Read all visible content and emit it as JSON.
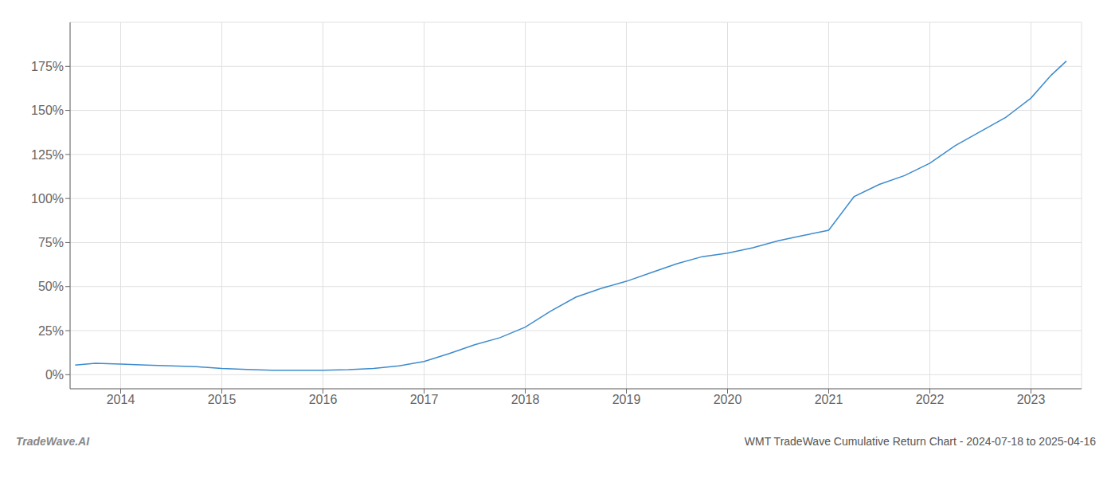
{
  "chart_data": {
    "type": "line",
    "title": "WMT TradeWave Cumulative Return Chart - 2024-07-18 to 2025-04-16",
    "annotations": [
      "TradeWave.AI"
    ],
    "x": [
      2013.55,
      2013.75,
      2014.0,
      2014.25,
      2014.5,
      2014.75,
      2015.0,
      2015.25,
      2015.5,
      2015.75,
      2016.0,
      2016.25,
      2016.5,
      2016.75,
      2017.0,
      2017.25,
      2017.5,
      2017.75,
      2018.0,
      2018.25,
      2018.5,
      2018.75,
      2019.0,
      2019.25,
      2019.5,
      2019.75,
      2020.0,
      2020.25,
      2020.5,
      2020.75,
      2021.0,
      2021.25,
      2021.5,
      2021.75,
      2022.0,
      2022.25,
      2022.5,
      2022.75,
      2023.0,
      2023.2,
      2023.35
    ],
    "values": [
      5.5,
      6.5,
      6.0,
      5.5,
      5.0,
      4.5,
      3.5,
      3.0,
      2.5,
      2.5,
      2.5,
      2.8,
      3.5,
      5.0,
      7.5,
      12.0,
      17.0,
      21.0,
      27.0,
      36.0,
      44.0,
      49.0,
      53.0,
      58.0,
      63.0,
      67.0,
      69.0,
      72.0,
      76.0,
      79.0,
      82.0,
      101.0,
      108.0,
      113.0,
      120.0,
      130.0,
      138.0,
      146.0,
      157.0,
      170.0,
      178.0
    ],
    "color": "#3d8bcd",
    "xlim": [
      2013.5,
      2023.5
    ],
    "xticks": [
      2014,
      2015,
      2016,
      2017,
      2018,
      2019,
      2020,
      2021,
      2022,
      2023
    ],
    "ylim": [
      -8,
      200
    ],
    "yticks": [
      {
        "value": 0,
        "label": "0%"
      },
      {
        "value": 25,
        "label": "25%"
      },
      {
        "value": 50,
        "label": "50%"
      },
      {
        "value": 75,
        "label": "75%"
      },
      {
        "value": 100,
        "label": "100%"
      },
      {
        "value": 125,
        "label": "125%"
      },
      {
        "value": 150,
        "label": "150%"
      },
      {
        "value": 175,
        "label": "175%"
      }
    ],
    "grid": true
  }
}
